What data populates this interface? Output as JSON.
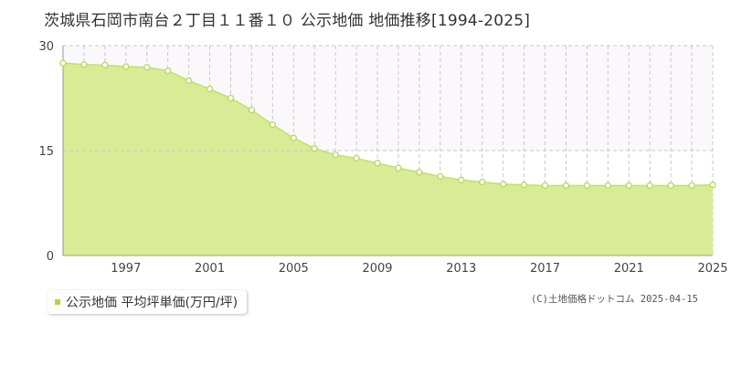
{
  "page": {
    "title": "茨城県石岡市南台２丁目１１番１０ 公示地価 地価推移[1994-2025]",
    "credit": "(C)土地価格ドットコム 2025-04-15"
  },
  "colors": {
    "fill": "#d9eb94",
    "line": "#c3e06a",
    "marker_fill": "#ffffff",
    "marker_stroke": "#b8d85a",
    "grid": "#c8c8c8",
    "axis": "#999999",
    "upper_band": "#faf8fb",
    "legend_swatch": "#b5d43e"
  },
  "chart_data": {
    "type": "area",
    "title": "",
    "xlabel": "",
    "ylabel": "",
    "x": [
      1994,
      1995,
      1996,
      1997,
      1998,
      1999,
      2000,
      2001,
      2002,
      2003,
      2004,
      2005,
      2006,
      2007,
      2008,
      2009,
      2010,
      2011,
      2012,
      2013,
      2014,
      2015,
      2016,
      2017,
      2018,
      2019,
      2020,
      2021,
      2022,
      2023,
      2024,
      2025
    ],
    "series": [
      {
        "name": "公示地価 平均坪単価(万円/坪)",
        "values": [
          27.5,
          27.3,
          27.2,
          27.0,
          26.9,
          26.4,
          25.0,
          23.8,
          22.5,
          20.8,
          18.7,
          16.8,
          15.3,
          14.4,
          13.9,
          13.2,
          12.5,
          11.9,
          11.3,
          10.8,
          10.5,
          10.2,
          10.1,
          10.0,
          10.0,
          10.0,
          10.0,
          10.0,
          10.0,
          10.0,
          10.0,
          10.1
        ]
      }
    ],
    "xlim": [
      1994,
      2025
    ],
    "ylim": [
      0,
      30
    ],
    "yticks": [
      "0",
      "15",
      "30"
    ],
    "xticks": [
      "1997",
      "2001",
      "2005",
      "2009",
      "2013",
      "2017",
      "2021",
      "2025"
    ],
    "xtick_values": [
      1997,
      2001,
      2005,
      2009,
      2013,
      2017,
      2021,
      2025
    ],
    "ytick_values": [
      0,
      15,
      30
    ],
    "grid": true,
    "legend_position": "bottom-left"
  }
}
